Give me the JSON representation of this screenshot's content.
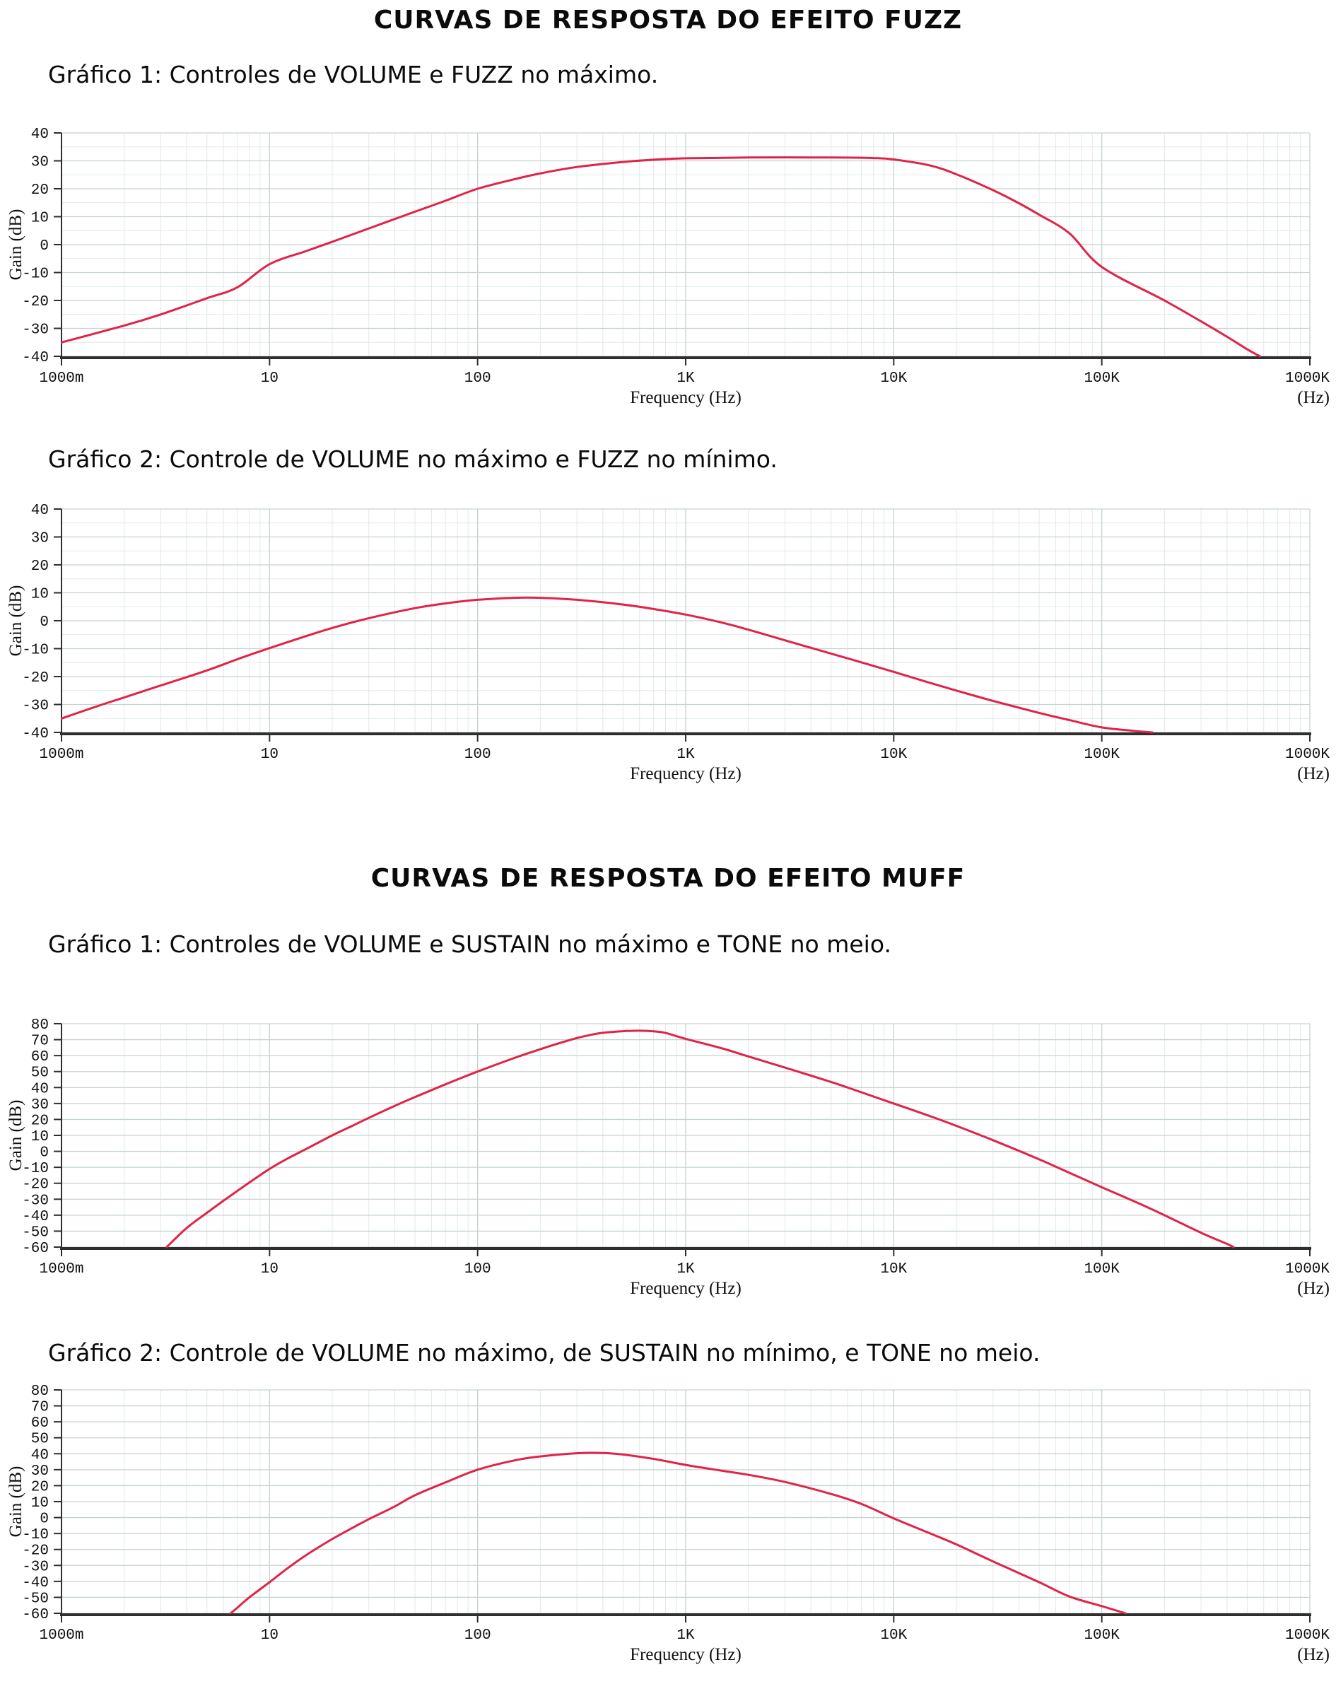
{
  "colors": {
    "curve": "#e02349",
    "grid_minor": "#e2e9e7",
    "grid_major": "#c6d3cf",
    "axis_dark": "#2e2e2e",
    "text": "#101010",
    "background": "#ffffff"
  },
  "sections": [
    {
      "title": "CURVAS DE RESPOSTA DO EFEITO FUZZ"
    },
    {
      "title": "CURVAS DE RESPOSTA DO EFEITO MUFF"
    }
  ],
  "chart_data": [
    {
      "type": "line",
      "section": "FUZZ",
      "caption": "Gráfico 1: Controles de VOLUME e FUZZ no máximo.",
      "xlabel": "Frequency (Hz)",
      "x_axis_unit": "(Hz)",
      "ylabel": "Gain (dB)",
      "xscale": "log",
      "xlim": [
        1,
        1000000
      ],
      "xtick_labels": [
        "1000m",
        "10",
        "100",
        "1K",
        "10K",
        "100K",
        "1000K"
      ],
      "ylim": [
        -40,
        40
      ],
      "ytick_step": 10,
      "yminor_step": 5,
      "grid": true,
      "series_name": "Gain",
      "points": [
        [
          1,
          -35
        ],
        [
          2,
          -29
        ],
        [
          3,
          -25
        ],
        [
          5,
          -19.2
        ],
        [
          7,
          -15.3
        ],
        [
          10,
          -7
        ],
        [
          15,
          -2.3
        ],
        [
          20,
          1
        ],
        [
          30,
          5.8
        ],
        [
          50,
          11.8
        ],
        [
          70,
          15.7
        ],
        [
          100,
          20
        ],
        [
          150,
          23.4
        ],
        [
          200,
          25.5
        ],
        [
          300,
          27.8
        ],
        [
          500,
          29.6
        ],
        [
          700,
          30.4
        ],
        [
          1000,
          30.9
        ],
        [
          2000,
          31.2
        ],
        [
          5000,
          31.2
        ],
        [
          8000,
          31
        ],
        [
          10000,
          30.5
        ],
        [
          15000,
          28.3
        ],
        [
          20000,
          25.2
        ],
        [
          30000,
          19.5
        ],
        [
          40000,
          14.8
        ],
        [
          50000,
          10.7
        ],
        [
          70000,
          4
        ],
        [
          100000,
          -8
        ],
        [
          200000,
          -20
        ],
        [
          300000,
          -27.5
        ],
        [
          400000,
          -33
        ],
        [
          500000,
          -37.5
        ],
        [
          575000,
          -40
        ]
      ]
    },
    {
      "type": "line",
      "section": "FUZZ",
      "caption": "Gráfico 2: Controle de VOLUME no máximo e FUZZ no mínimo.",
      "xlabel": "Frequency (Hz)",
      "x_axis_unit": "(Hz)",
      "ylabel": "Gain (dB)",
      "xscale": "log",
      "xlim": [
        1,
        1000000
      ],
      "xtick_labels": [
        "1000m",
        "10",
        "100",
        "1K",
        "10K",
        "100K",
        "1000K"
      ],
      "ylim": [
        -40,
        40
      ],
      "ytick_step": 10,
      "yminor_step": 5,
      "grid": true,
      "series_name": "Gain",
      "points": [
        [
          1,
          -35
        ],
        [
          1.5,
          -30.5
        ],
        [
          2,
          -27.5
        ],
        [
          3,
          -23.2
        ],
        [
          5,
          -17.8
        ],
        [
          7,
          -13.8
        ],
        [
          10,
          -9.8
        ],
        [
          15,
          -5.5
        ],
        [
          20,
          -2.6
        ],
        [
          30,
          0.9
        ],
        [
          50,
          4.5
        ],
        [
          70,
          6.2
        ],
        [
          100,
          7.5
        ],
        [
          150,
          8.2
        ],
        [
          200,
          8.2
        ],
        [
          300,
          7.5
        ],
        [
          500,
          5.8
        ],
        [
          700,
          4.2
        ],
        [
          1000,
          2.2
        ],
        [
          1500,
          -0.7
        ],
        [
          2000,
          -3.2
        ],
        [
          3000,
          -7
        ],
        [
          5000,
          -11.8
        ],
        [
          7000,
          -14.9
        ],
        [
          10000,
          -18.3
        ],
        [
          15000,
          -22.3
        ],
        [
          20000,
          -25
        ],
        [
          30000,
          -28.7
        ],
        [
          50000,
          -33
        ],
        [
          70000,
          -35.6
        ],
        [
          100000,
          -38.2
        ],
        [
          140000,
          -39.4
        ],
        [
          175000,
          -40
        ]
      ]
    },
    {
      "type": "line",
      "section": "MUFF",
      "caption": "Gráfico 1: Controles de VOLUME e SUSTAIN no máximo e TONE no meio.",
      "xlabel": "Frequency (Hz)",
      "x_axis_unit": "(Hz)",
      "ylabel": "Gain (dB)",
      "xscale": "log",
      "xlim": [
        1,
        1000000
      ],
      "xtick_labels": [
        "1000m",
        "10",
        "100",
        "1K",
        "10K",
        "100K",
        "1000K"
      ],
      "ylim": [
        -60,
        80
      ],
      "ytick_step": 10,
      "yminor_step": null,
      "grid": true,
      "series_name": "Gain",
      "points": [
        [
          3.2,
          -60
        ],
        [
          4,
          -48
        ],
        [
          5,
          -38.5
        ],
        [
          6,
          -31
        ],
        [
          8,
          -19.5
        ],
        [
          10,
          -11
        ],
        [
          12,
          -5
        ],
        [
          15,
          1.5
        ],
        [
          20,
          10
        ],
        [
          25,
          16
        ],
        [
          30,
          21
        ],
        [
          40,
          28.5
        ],
        [
          50,
          34
        ],
        [
          70,
          42
        ],
        [
          100,
          50
        ],
        [
          150,
          58.5
        ],
        [
          200,
          64
        ],
        [
          250,
          68
        ],
        [
          300,
          71
        ],
        [
          350,
          73
        ],
        [
          400,
          74.3
        ],
        [
          500,
          75.3
        ],
        [
          600,
          75.6
        ],
        [
          700,
          75.2
        ],
        [
          800,
          74.2
        ],
        [
          1000,
          70.5
        ],
        [
          1500,
          64.5
        ],
        [
          2000,
          59.5
        ],
        [
          3000,
          52.5
        ],
        [
          5000,
          43.5
        ],
        [
          7000,
          37
        ],
        [
          10000,
          30
        ],
        [
          15000,
          22
        ],
        [
          20000,
          16
        ],
        [
          30000,
          7
        ],
        [
          50000,
          -5
        ],
        [
          70000,
          -13.5
        ],
        [
          100000,
          -22.5
        ],
        [
          150000,
          -32.5
        ],
        [
          200000,
          -40
        ],
        [
          300000,
          -51
        ],
        [
          400000,
          -58
        ],
        [
          430000,
          -60
        ]
      ]
    },
    {
      "type": "line",
      "section": "MUFF",
      "caption": "Gráfico 2: Controle de VOLUME no máximo, de SUSTAIN no mínimo, e TONE no meio.",
      "xlabel": "Frequency (Hz)",
      "x_axis_unit": "(Hz)",
      "ylabel": "Gain (dB)",
      "xscale": "log",
      "xlim": [
        1,
        1000000
      ],
      "xtick_labels": [
        "1000m",
        "10",
        "100",
        "1K",
        "10K",
        "100K",
        "1000K"
      ],
      "ylim": [
        -60,
        80
      ],
      "ytick_step": 10,
      "yminor_step": null,
      "grid": true,
      "series_name": "Gain",
      "points": [
        [
          6.5,
          -60
        ],
        [
          7,
          -56.5
        ],
        [
          8,
          -50
        ],
        [
          10,
          -40.5
        ],
        [
          12,
          -32.5
        ],
        [
          15,
          -23.5
        ],
        [
          20,
          -13.5
        ],
        [
          25,
          -6.5
        ],
        [
          30,
          -1
        ],
        [
          40,
          7
        ],
        [
          50,
          14
        ],
        [
          70,
          22
        ],
        [
          100,
          30
        ],
        [
          150,
          35.8
        ],
        [
          200,
          38.3
        ],
        [
          300,
          40.3
        ],
        [
          400,
          40.5
        ],
        [
          500,
          39.5
        ],
        [
          700,
          36.8
        ],
        [
          1000,
          33
        ],
        [
          1500,
          29.3
        ],
        [
          2000,
          26.8
        ],
        [
          3000,
          22.3
        ],
        [
          5000,
          14.8
        ],
        [
          7000,
          8.5
        ],
        [
          10000,
          -0.5
        ],
        [
          15000,
          -10
        ],
        [
          20000,
          -16.8
        ],
        [
          30000,
          -27.5
        ],
        [
          50000,
          -40.5
        ],
        [
          70000,
          -49.5
        ],
        [
          100000,
          -55.5
        ],
        [
          130000,
          -60
        ]
      ]
    }
  ]
}
